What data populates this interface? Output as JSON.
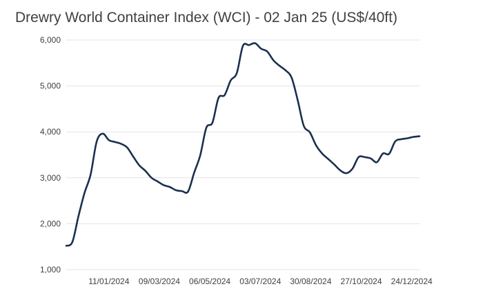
{
  "chart_data": {
    "type": "line",
    "title": "Drewry World Container Index (WCI) - 02 Jan 25 (US$/40ft)",
    "xlabel": "",
    "ylabel": "",
    "ylim": [
      1000,
      6000
    ],
    "grid": true,
    "legend": "none",
    "line_color": "#1b2f4e",
    "y_ticks": [
      "1,000",
      "2,000",
      "3,000",
      "4,000",
      "5,000",
      "6,000"
    ],
    "x_ticks": [
      "11/01/2024",
      "09/03/2024",
      "06/05/2024",
      "03/07/2024",
      "30/08/2024",
      "27/10/2024",
      "24/12/2024"
    ],
    "series": [
      {
        "x": [
          "2023-11-23",
          "2023-11-30",
          "2023-12-07",
          "2023-12-14",
          "2023-12-21",
          "2023-12-28",
          "2024-01-04",
          "2024-01-11",
          "2024-01-18",
          "2024-01-25",
          "2024-02-01",
          "2024-02-08",
          "2024-02-15",
          "2024-02-22",
          "2024-02-29",
          "2024-03-07",
          "2024-03-14",
          "2024-03-21",
          "2024-03-28",
          "2024-04-04",
          "2024-04-11",
          "2024-04-18",
          "2024-04-25",
          "2024-05-02",
          "2024-05-09",
          "2024-05-16",
          "2024-05-23",
          "2024-05-30",
          "2024-06-06",
          "2024-06-13",
          "2024-06-20",
          "2024-06-27",
          "2024-07-04",
          "2024-07-11",
          "2024-07-18",
          "2024-07-25",
          "2024-08-01",
          "2024-08-08",
          "2024-08-15",
          "2024-08-22",
          "2024-08-29",
          "2024-09-05",
          "2024-09-12",
          "2024-09-19",
          "2024-09-26",
          "2024-10-03",
          "2024-10-10",
          "2024-10-17",
          "2024-10-24",
          "2024-10-31",
          "2024-11-07",
          "2024-11-14",
          "2024-11-21",
          "2024-11-28",
          "2024-12-05",
          "2024-12-12",
          "2024-12-19",
          "2024-12-26",
          "2025-01-02"
        ],
        "values": [
          1520,
          1600,
          2160,
          2670,
          3070,
          3790,
          3960,
          3820,
          3780,
          3740,
          3660,
          3460,
          3270,
          3150,
          3000,
          2920,
          2840,
          2800,
          2730,
          2710,
          2700,
          3110,
          3490,
          4090,
          4200,
          4740,
          4800,
          5120,
          5280,
          5870,
          5890,
          5930,
          5810,
          5750,
          5560,
          5440,
          5340,
          5180,
          4690,
          4130,
          3990,
          3710,
          3530,
          3410,
          3290,
          3160,
          3100,
          3200,
          3450,
          3450,
          3420,
          3340,
          3530,
          3520,
          3790,
          3840,
          3860,
          3890,
          3905
        ]
      }
    ]
  }
}
